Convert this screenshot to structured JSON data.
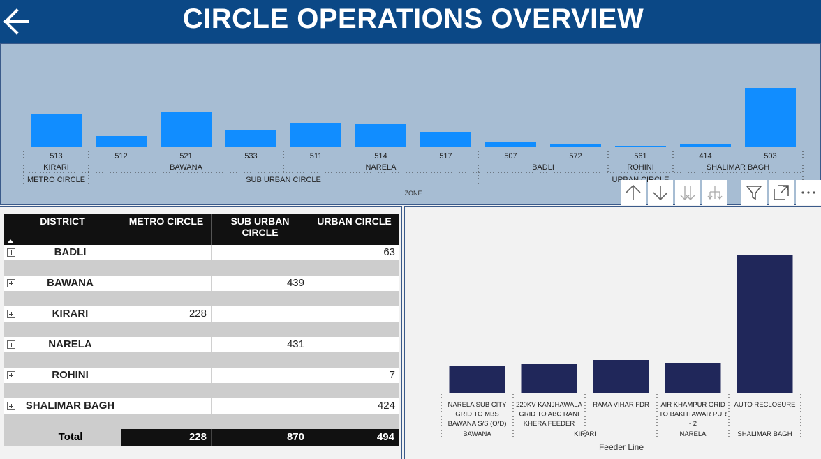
{
  "header": {
    "title": "CIRCLE OPERATIONS OVERVIEW"
  },
  "top_chart": {
    "type": "bar",
    "bar_color": "#118dff",
    "axis_title": "ZONE",
    "bars": [
      {
        "label": "513",
        "value": 48
      },
      {
        "label": "512",
        "value": 16
      },
      {
        "label": "521",
        "value": 50
      },
      {
        "label": "533",
        "value": 25
      },
      {
        "label": "511",
        "value": 35
      },
      {
        "label": "514",
        "value": 33
      },
      {
        "label": "517",
        "value": 22
      },
      {
        "label": "507",
        "value": 7
      },
      {
        "label": "572",
        "value": 5
      },
      {
        "label": "561",
        "value": 1
      },
      {
        "label": "414",
        "value": 5
      },
      {
        "label": "503",
        "value": 85
      }
    ],
    "districts": [
      {
        "name": "KIRARI",
        "start": 0,
        "end": 0
      },
      {
        "name": "BAWANA",
        "start": 1,
        "end": 3
      },
      {
        "name": "NARELA",
        "start": 4,
        "end": 6
      },
      {
        "name": "BADLI",
        "start": 7,
        "end": 8
      },
      {
        "name": "ROHINI",
        "start": 9,
        "end": 9
      },
      {
        "name": "SHALIMAR BAGH",
        "start": 10,
        "end": 11
      }
    ],
    "circles": [
      {
        "name": "METRO CIRCLE",
        "start": 0,
        "end": 0
      },
      {
        "name": "SUB URBAN CIRCLE",
        "start": 1,
        "end": 6
      },
      {
        "name": "URBAN CIRCLE",
        "start": 7,
        "end": 11
      }
    ]
  },
  "toolbar": {
    "buttons": [
      "arrow-up-icon",
      "arrow-down-icon",
      "double-arrow-down-icon",
      "hierarchy-expand-icon",
      "filter-icon",
      "focus-mode-icon",
      "more-options-icon"
    ]
  },
  "matrix": {
    "headers": [
      "DISTRICT",
      "METRO CIRCLE",
      "SUB URBAN CIRCLE",
      "URBAN CIRCLE"
    ],
    "rows": [
      {
        "district": "BADLI",
        "metro": "",
        "suburban": "",
        "urban": "63"
      },
      {
        "district": "BAWANA",
        "metro": "",
        "suburban": "439",
        "urban": ""
      },
      {
        "district": "KIRARI",
        "metro": "228",
        "suburban": "",
        "urban": ""
      },
      {
        "district": "NARELA",
        "metro": "",
        "suburban": "431",
        "urban": ""
      },
      {
        "district": "ROHINI",
        "metro": "",
        "suburban": "",
        "urban": "7"
      },
      {
        "district": "SHALIMAR BAGH",
        "metro": "",
        "suburban": "",
        "urban": "424"
      }
    ],
    "total": {
      "label": "Total",
      "metro": "228",
      "suburban": "870",
      "urban": "494"
    }
  },
  "chart_data": [
    {
      "type": "bar",
      "categories": [
        "513",
        "512",
        "521",
        "533",
        "511",
        "514",
        "517",
        "507",
        "572",
        "561",
        "414",
        "503"
      ],
      "values": [
        48,
        16,
        50,
        25,
        35,
        33,
        22,
        7,
        5,
        1,
        5,
        85
      ],
      "xlabel": "ZONE"
    },
    {
      "type": "bar",
      "categories": [
        "NARELA SUB CITY GRID TO MBS BAWANA S/S (O/D)",
        "220KV KANJHAWALA GRID TO ABC RANI KHERA FEEDER",
        "RAMA VIHAR FDR",
        "AIR KHAMPUR GRID TO BAKHTAWAR PUR - 2",
        "AUTO RECLOSURE"
      ],
      "values": [
        39,
        41,
        47,
        43,
        197
      ],
      "xlabel": "Feeder Line"
    }
  ],
  "right_chart": {
    "bar_color": "#20275a",
    "axis_title": "Feeder Line",
    "bars": [
      {
        "lines": [
          "NARELA SUB CITY",
          "GRID TO MBS",
          "BAWANA S/S (O/D)"
        ],
        "value": 39
      },
      {
        "lines": [
          "220KV KANJHAWALA",
          "GRID TO ABC RANI",
          "KHERA FEEDER"
        ],
        "value": 41
      },
      {
        "lines": [
          "RAMA VIHAR FDR"
        ],
        "value": 47
      },
      {
        "lines": [
          "AIR KHAMPUR GRID",
          "TO BAKHTAWAR PUR",
          "- 2"
        ],
        "value": 43
      },
      {
        "lines": [
          "AUTO RECLOSURE"
        ],
        "value": 197
      }
    ],
    "groups": [
      {
        "name": "BAWANA",
        "start": 0,
        "end": 0
      },
      {
        "name": "KIRARI",
        "start": 1,
        "end": 2
      },
      {
        "name": "NARELA",
        "start": 3,
        "end": 3
      },
      {
        "name": "SHALIMAR BAGH",
        "start": 4,
        "end": 4
      }
    ]
  }
}
